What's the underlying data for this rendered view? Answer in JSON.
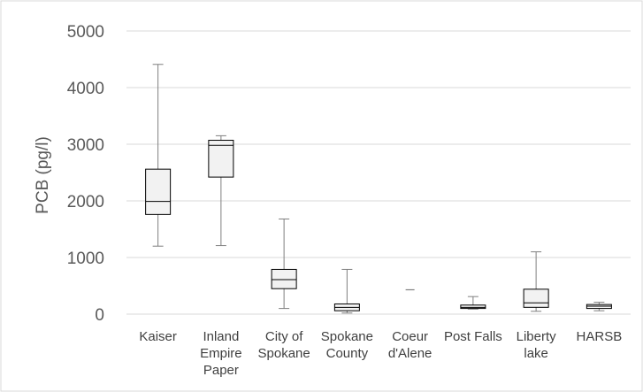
{
  "chart_data": {
    "type": "box",
    "title": "",
    "xlabel": "",
    "ylabel": "PCB (pg/l)",
    "ylim": [
      0,
      5000
    ],
    "yticks": [
      0,
      1000,
      2000,
      3000,
      4000,
      5000
    ],
    "grid": true,
    "categories": [
      [
        "Kaiser"
      ],
      [
        "Inland",
        "Empire",
        "Paper"
      ],
      [
        "City of",
        "Spokane"
      ],
      [
        "Spokane",
        "County"
      ],
      [
        "Coeur",
        "d'Alene"
      ],
      [
        "Post Falls"
      ],
      [
        "Liberty",
        "lake"
      ],
      [
        "HARSB"
      ]
    ],
    "boxes": [
      {
        "min": 1200,
        "q1": 1760,
        "median": 1990,
        "q3": 2560,
        "max": 4410
      },
      {
        "min": 1210,
        "q1": 2420,
        "median": 2980,
        "q3": 3070,
        "max": 3150
      },
      {
        "min": 100,
        "q1": 450,
        "median": 610,
        "q3": 790,
        "max": 1680
      },
      {
        "min": 20,
        "q1": 60,
        "median": 120,
        "q3": 180,
        "max": 790
      },
      {
        "min": 430,
        "q1": 430,
        "median": 430,
        "q3": 430,
        "max": 430
      },
      {
        "min": 90,
        "q1": 100,
        "median": 120,
        "q3": 160,
        "max": 310
      },
      {
        "min": 50,
        "q1": 120,
        "median": 200,
        "q3": 440,
        "max": 1100
      },
      {
        "min": 60,
        "q1": 100,
        "median": 140,
        "q3": 170,
        "max": 210
      }
    ],
    "colors": {
      "box_fill": "#f2f2f2",
      "box_stroke": "#000000",
      "whisker": "#7f7f7f",
      "grid": "#d9d9d9",
      "text": "#595959"
    }
  }
}
